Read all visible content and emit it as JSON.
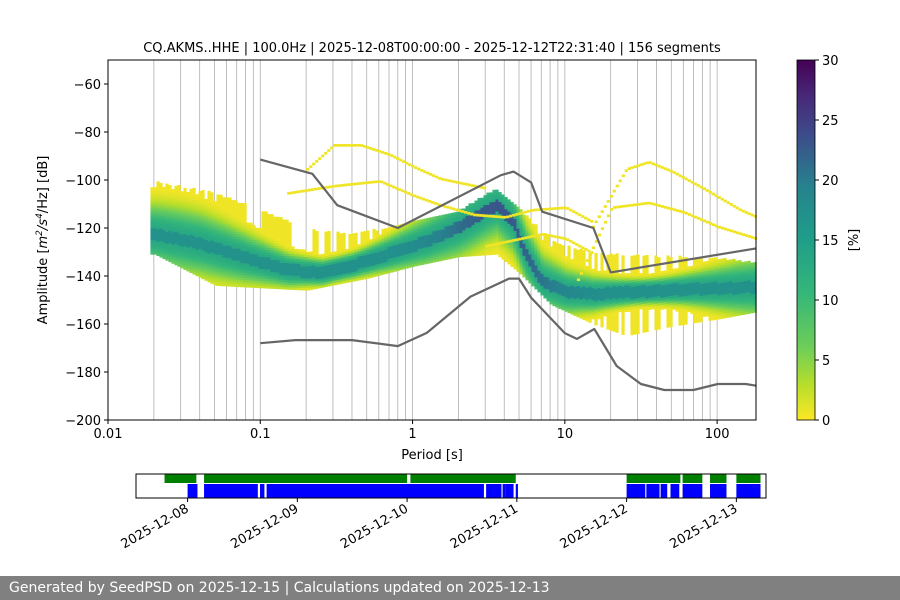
{
  "chart_data": [
    {
      "type": "heatmap",
      "title": "CQ.AKMS..HHE | 100.0Hz | 2025-12-08T00:00:00 - 2025-12-12T22:31:40 | 156 segments",
      "xlabel": "Period [s]",
      "ylabel": "Amplitude [m²/s⁴/Hz] [dB]",
      "ylabel_parts": {
        "prefix": "Amplitude [",
        "m": "m",
        "sup2": "2",
        "slash_s": "/s",
        "sup4": "4",
        "tail": "/Hz] [dB]"
      },
      "x_scale": "log",
      "xlim": [
        0.01,
        180
      ],
      "ylim": [
        -200,
        -50
      ],
      "x_ticks": [
        0.01,
        0.1,
        1,
        10,
        100
      ],
      "x_tick_labels": [
        "0.01",
        "0.1",
        "1",
        "10",
        "100"
      ],
      "y_ticks": [
        -200,
        -180,
        -160,
        -140,
        -120,
        -100,
        -80,
        -60
      ],
      "y_tick_labels": [
        "−200",
        "−180",
        "−160",
        "−140",
        "−120",
        "−100",
        "−80",
        "−60"
      ],
      "grid": "vertical log-decade minor lines",
      "colormap": "viridis_r",
      "colorbar": {
        "label": "[%]",
        "min": 0,
        "max": 30,
        "ticks": [
          0,
          5,
          10,
          15,
          20,
          25,
          30
        ],
        "tick_labels": [
          "0",
          "5",
          "10",
          "15",
          "20",
          "25",
          "30"
        ]
      },
      "noise_model_high": [
        [
          0.1,
          -91.5
        ],
        [
          0.22,
          -97.4
        ],
        [
          0.32,
          -110.5
        ],
        [
          0.8,
          -120
        ],
        [
          3.8,
          -98
        ],
        [
          4.6,
          -96.5
        ],
        [
          6,
          -101
        ],
        [
          7.1,
          -113.2
        ],
        [
          15.4,
          -120
        ],
        [
          20,
          -138.5
        ],
        [
          180,
          -128.5
        ]
      ],
      "noise_model_low": [
        [
          0.1,
          -168
        ],
        [
          0.17,
          -166.7
        ],
        [
          0.4,
          -166.7
        ],
        [
          0.8,
          -169.2
        ],
        [
          1.24,
          -163.7
        ],
        [
          2.4,
          -148.6
        ],
        [
          4.3,
          -141.1
        ],
        [
          5,
          -141.1
        ],
        [
          6,
          -149
        ],
        [
          10,
          -163.8
        ],
        [
          12,
          -166.2
        ],
        [
          15.6,
          -162.1
        ],
        [
          21.9,
          -177.5
        ],
        [
          31.6,
          -185
        ],
        [
          45,
          -187.5
        ],
        [
          70,
          -187.5
        ],
        [
          101,
          -185
        ],
        [
          154,
          -185
        ],
        [
          180,
          -185.7
        ]
      ],
      "mode_curve": [
        [
          0.02,
          -123
        ],
        [
          0.04,
          -127
        ],
        [
          0.08,
          -133
        ],
        [
          0.15,
          -138
        ],
        [
          0.25,
          -139
        ],
        [
          0.4,
          -136
        ],
        [
          0.7,
          -131
        ],
        [
          1.2,
          -126
        ],
        [
          2,
          -120
        ],
        [
          3,
          -113
        ],
        [
          3.5,
          -111
        ],
        [
          4.5,
          -118
        ],
        [
          5.5,
          -132
        ],
        [
          7,
          -143
        ],
        [
          10,
          -147
        ],
        [
          15,
          -148
        ],
        [
          30,
          -147
        ],
        [
          60,
          -146
        ],
        [
          180,
          -145
        ]
      ],
      "spread_upper": [
        [
          0.02,
          -101
        ],
        [
          0.05,
          -106
        ],
        [
          0.1,
          -113
        ],
        [
          0.2,
          -121
        ],
        [
          0.4,
          -123
        ],
        [
          1,
          -118
        ],
        [
          2,
          -113
        ],
        [
          3.5,
          -104
        ],
        [
          5,
          -113
        ],
        [
          8,
          -126
        ],
        [
          15,
          -131
        ],
        [
          30,
          -132
        ],
        [
          100,
          -133
        ],
        [
          180,
          -135
        ]
      ],
      "spread_lower": [
        [
          0.02,
          -131
        ],
        [
          0.05,
          -144
        ],
        [
          0.1,
          -145
        ],
        [
          0.2,
          -146
        ],
        [
          0.5,
          -141
        ],
        [
          1,
          -136
        ],
        [
          2,
          -132
        ],
        [
          3.5,
          -131
        ],
        [
          5,
          -139
        ],
        [
          8,
          -152
        ],
        [
          15,
          -160
        ],
        [
          25,
          -165
        ],
        [
          50,
          -161
        ],
        [
          100,
          -158
        ],
        [
          180,
          -155
        ]
      ],
      "outlier_curves": [
        [
          [
            0.2,
            -96
          ],
          [
            0.3,
            -86
          ],
          [
            0.45,
            -86
          ],
          [
            0.7,
            -90
          ],
          [
            1,
            -95
          ],
          [
            1.5,
            -100
          ],
          [
            3,
            -104
          ]
        ],
        [
          [
            0.15,
            -106
          ],
          [
            0.3,
            -103
          ],
          [
            0.6,
            -101
          ],
          [
            1,
            -107
          ],
          [
            1.5,
            -111
          ],
          [
            2.5,
            -115
          ],
          [
            4,
            -116
          ],
          [
            6,
            -113
          ],
          [
            10,
            -112
          ],
          [
            15,
            -118
          ]
        ],
        [
          [
            15,
            -120
          ],
          [
            25,
            -96
          ],
          [
            35,
            -93
          ],
          [
            50,
            -97
          ],
          [
            80,
            -104
          ],
          [
            140,
            -113
          ],
          [
            180,
            -116
          ]
        ],
        [
          [
            12,
            -142
          ],
          [
            20,
            -112
          ],
          [
            35,
            -110
          ],
          [
            60,
            -114
          ],
          [
            100,
            -120
          ],
          [
            180,
            -125
          ]
        ],
        [
          [
            3,
            -128
          ],
          [
            5,
            -125
          ],
          [
            7,
            -123
          ],
          [
            10,
            -125
          ],
          [
            15,
            -131
          ]
        ]
      ]
    },
    {
      "type": "timeline",
      "x_tick_labels": [
        "2025-12-08",
        "2025-12-09",
        "2025-12-10",
        "2025-12-11",
        "2025-12-12",
        "2025-12-13"
      ],
      "xlim_days": [
        -0.47,
        5.27
      ],
      "green_bars": [
        [
          -0.21,
          0.08
        ],
        [
          0.15,
          2.0
        ],
        [
          2.03,
          2.99
        ],
        [
          4.0,
          4.49
        ],
        [
          4.51,
          4.69
        ],
        [
          4.76,
          4.91
        ],
        [
          5.0,
          5.22
        ]
      ],
      "blue_bars": [
        [
          0.0,
          0.09
        ],
        [
          0.15,
          0.64
        ],
        [
          0.66,
          0.7
        ],
        [
          0.72,
          2.7
        ],
        [
          2.72,
          2.86
        ],
        [
          2.87,
          2.9
        ],
        [
          2.9,
          2.97
        ],
        [
          2.99,
          3.01
        ],
        [
          4.0,
          4.17
        ],
        [
          4.18,
          4.3
        ],
        [
          4.31,
          4.37
        ],
        [
          4.4,
          4.48
        ],
        [
          4.51,
          4.69
        ],
        [
          4.76,
          4.91
        ],
        [
          5.0,
          5.22
        ]
      ]
    }
  ],
  "footer": {
    "text": "Generated by SeedPSD on 2025-12-15 | Calculations updated on 2025-12-13"
  }
}
